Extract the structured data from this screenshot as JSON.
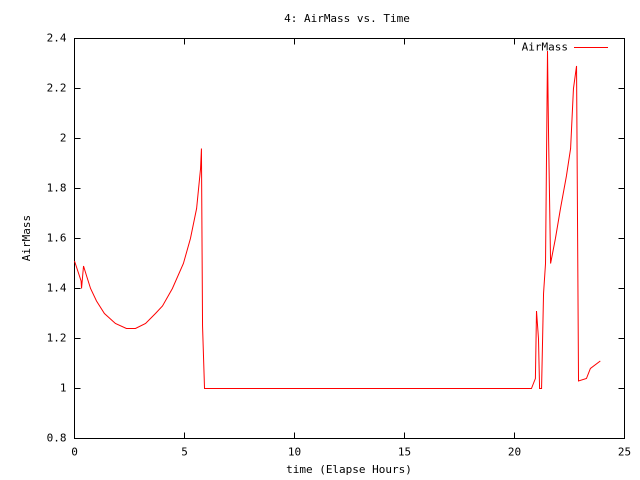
{
  "chart_data": {
    "type": "line",
    "title": "4: AirMass vs. Time",
    "x_label": "time (Elapse Hours)",
    "y_label": "AirMass",
    "xlim": [
      0,
      25
    ],
    "xticks": [
      0,
      5,
      10,
      15,
      20,
      25
    ],
    "ylim": [
      0.8,
      2.4
    ],
    "yticks": [
      0.8,
      1,
      1.2,
      1.4,
      1.6,
      1.8,
      2,
      2.2,
      2.4
    ],
    "legend": "top-right",
    "x": [
      0,
      0.3,
      0.32,
      0.41,
      0.55,
      0.73,
      1.0,
      1.36,
      1.86,
      2.36,
      2.77,
      3.23,
      3.68,
      4.0,
      4.45,
      4.95,
      5.27,
      5.55,
      5.73,
      5.77,
      5.82,
      5.91,
      20.77,
      20.86,
      20.95,
      21.0,
      21.09,
      21.14,
      21.23,
      21.32,
      21.41,
      21.5,
      21.55,
      21.64,
      21.86,
      22.09,
      22.36,
      22.55,
      22.68,
      22.82,
      22.91,
      23.27,
      23.45,
      23.9
    ],
    "series": [
      {
        "name": "AirMass",
        "color": "#ff0000",
        "values": [
          1.51,
          1.43,
          1.4,
          1.49,
          1.45,
          1.4,
          1.35,
          1.3,
          1.26,
          1.24,
          1.24,
          1.26,
          1.3,
          1.33,
          1.4,
          1.5,
          1.6,
          1.72,
          1.88,
          1.96,
          1.25,
          1.0,
          1.0,
          1.02,
          1.04,
          1.31,
          1.2,
          1.0,
          1.0,
          1.38,
          1.5,
          2.35,
          2.0,
          1.5,
          1.6,
          1.72,
          1.85,
          1.96,
          2.2,
          2.29,
          1.03,
          1.04,
          1.08,
          1.11
        ]
      }
    ]
  }
}
